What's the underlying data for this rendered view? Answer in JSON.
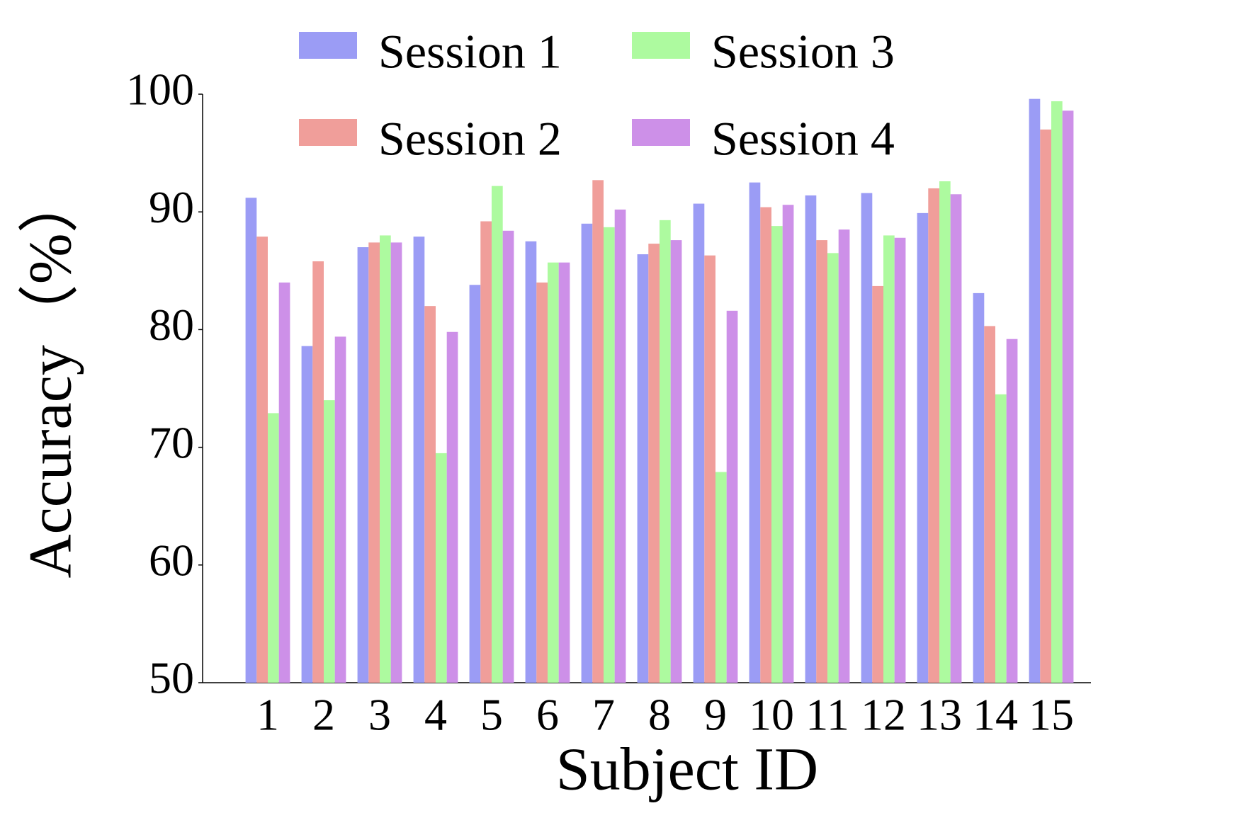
{
  "chart_data": {
    "type": "bar",
    "x_label": "Subject ID",
    "y_label": "Accuracy（%）",
    "categories": [
      "1",
      "2",
      "3",
      "4",
      "5",
      "6",
      "7",
      "8",
      "9",
      "10",
      "11",
      "12",
      "13",
      "14",
      "15"
    ],
    "series": [
      {
        "name": "Session 1",
        "color": "#9b9cf5",
        "values": [
          91.2,
          78.6,
          87.0,
          87.9,
          83.8,
          87.5,
          89.0,
          86.4,
          90.7,
          92.5,
          91.4,
          91.6,
          89.9,
          83.1,
          99.6
        ]
      },
      {
        "name": "Session 2",
        "color": "#f09e9a",
        "values": [
          87.9,
          85.8,
          87.4,
          82.0,
          89.2,
          84.0,
          92.7,
          87.3,
          86.3,
          90.4,
          87.6,
          83.7,
          92.0,
          80.3,
          97.0
        ]
      },
      {
        "name": "Session 3",
        "color": "#adfa9f",
        "values": [
          72.9,
          74.0,
          88.0,
          69.5,
          92.2,
          85.7,
          88.7,
          89.3,
          67.9,
          88.8,
          86.5,
          88.0,
          92.6,
          74.5,
          99.4
        ]
      },
      {
        "name": "Session 4",
        "color": "#cd90e8",
        "values": [
          84.0,
          79.4,
          87.4,
          79.8,
          88.4,
          85.7,
          90.2,
          87.6,
          81.6,
          90.6,
          88.5,
          87.8,
          91.5,
          79.2,
          98.6
        ]
      }
    ],
    "ylim": [
      50,
      100
    ],
    "yticks": [
      50,
      60,
      70,
      80,
      90,
      100
    ],
    "grid": false
  }
}
